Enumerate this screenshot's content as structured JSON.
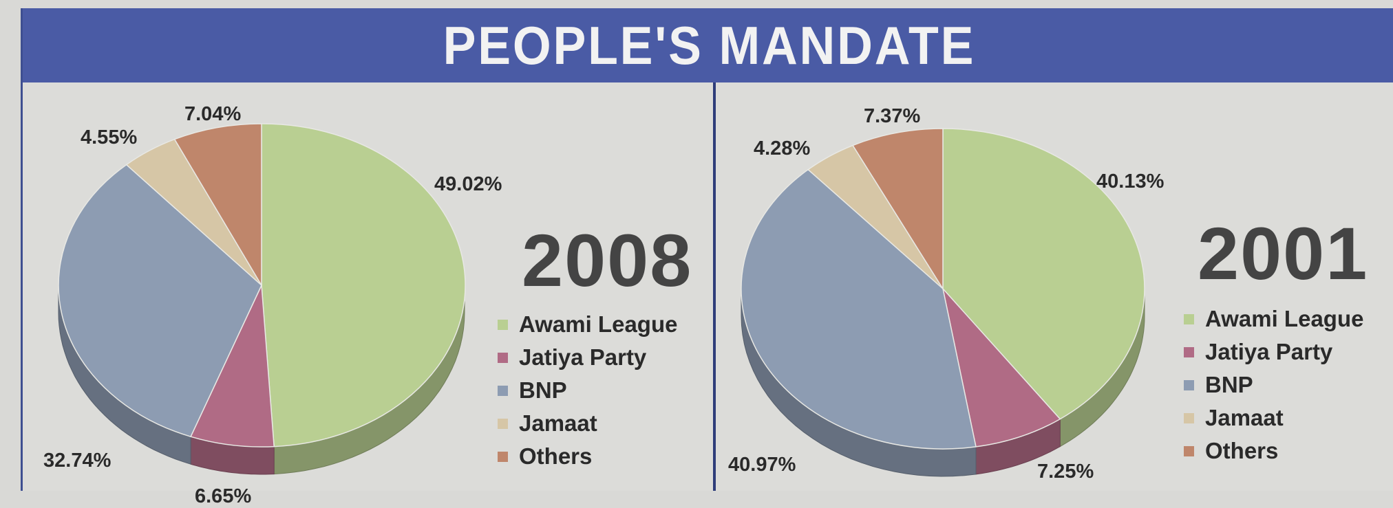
{
  "banner": {
    "title": "PEOPLE'S MANDATE"
  },
  "colors": {
    "Awami League": "#b9cf92",
    "Jatiya Party": "#b06b85",
    "BNP": "#8d9cb2",
    "Jamaat": "#d6c6a6",
    "Others": "#bf866b"
  },
  "chart_data": [
    {
      "type": "pie",
      "title": "2008",
      "categories": [
        "Awami League",
        "Jatiya Party",
        "BNP",
        "Jamaat",
        "Others"
      ],
      "values": [
        49.02,
        6.65,
        32.74,
        4.55,
        7.04
      ],
      "labels": [
        "49.02%",
        "6.65%",
        "32.74%",
        "4.55%",
        "7.04%"
      ],
      "legend": [
        "Awami League",
        "Jatiya Party",
        "BNP",
        "Jamaat",
        "Others"
      ]
    },
    {
      "type": "pie",
      "title": "2001",
      "categories": [
        "Awami League",
        "Jatiya Party",
        "BNP",
        "Jamaat",
        "Others"
      ],
      "values": [
        40.13,
        7.25,
        40.97,
        4.28,
        7.37
      ],
      "labels": [
        "40.13%",
        "7.25%",
        "40.97%",
        "4.28%",
        "7.37%"
      ],
      "legend": [
        "Awami League",
        "Jatiya Party",
        "BNP",
        "Jamaat",
        "Others"
      ]
    }
  ]
}
